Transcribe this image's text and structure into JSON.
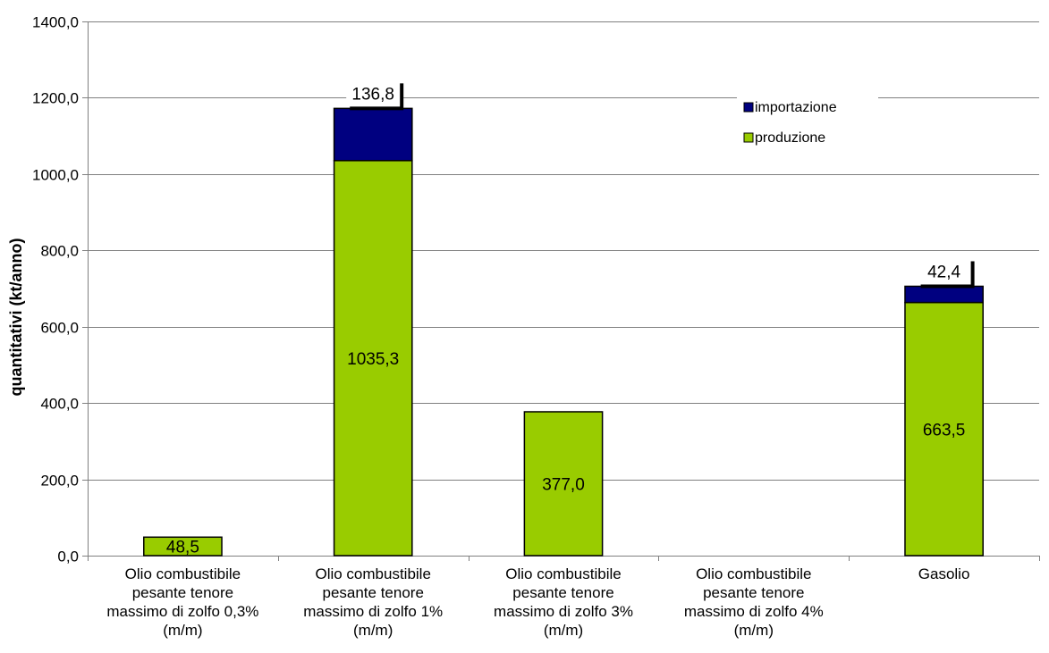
{
  "chart_data": {
    "type": "bar",
    "stacked": true,
    "title": "",
    "xlabel": "",
    "ylabel": "quantitativi (kt/anno)",
    "ylim": [
      0,
      1400
    ],
    "y_ticks": [
      0,
      200,
      400,
      600,
      800,
      1000,
      1200,
      1400
    ],
    "y_tick_labels": [
      "0,0",
      "200,0",
      "400,0",
      "600,0",
      "800,0",
      "1000,0",
      "1200,0",
      "1400,0"
    ],
    "grid": true,
    "legend_position": "top-right",
    "categories": [
      "Olio combustibile pesante tenore massimo di zolfo 0,3% (m/m)",
      "Olio combustibile pesante tenore massimo di zolfo 1% (m/m)",
      "Olio combustibile pesante tenore massimo di zolfo 3% (m/m)",
      "Olio combustibile pesante tenore massimo di zolfo 4% (m/m)",
      "Gasolio"
    ],
    "category_lines": [
      [
        "Olio combustibile",
        "pesante tenore",
        "massimo di zolfo 0,3%",
        "(m/m)"
      ],
      [
        "Olio combustibile",
        "pesante tenore",
        "massimo di zolfo 1%",
        "(m/m)"
      ],
      [
        "Olio combustibile",
        "pesante tenore",
        "massimo di zolfo 3%",
        "(m/m)"
      ],
      [
        "Olio combustibile",
        "pesante tenore",
        "massimo di zolfo 4%",
        "(m/m)"
      ],
      [
        "Gasolio"
      ]
    ],
    "series": [
      {
        "name": "produzione",
        "color": "#99CC00",
        "values": [
          48.5,
          1035.3,
          377.0,
          0,
          663.5
        ],
        "labels": [
          "48,5",
          "1035,3",
          "377,0",
          "",
          "663,5"
        ]
      },
      {
        "name": "importazione",
        "color": "#000080",
        "values": [
          0,
          136.8,
          0,
          0,
          42.4
        ],
        "labels": [
          "",
          "136,8",
          "",
          "",
          "42,4"
        ]
      }
    ],
    "legend_order": [
      "importazione",
      "produzione"
    ]
  }
}
